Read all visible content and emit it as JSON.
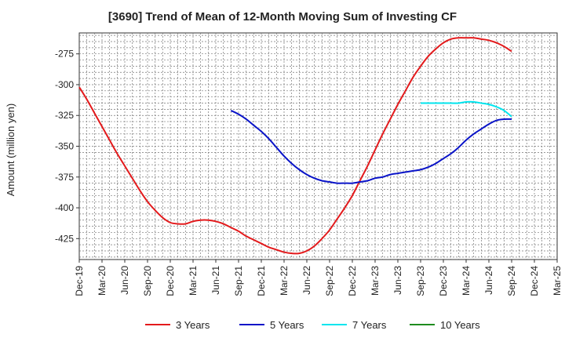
{
  "chart_data": {
    "type": "line",
    "title": "[3690]  Trend of Mean of 12-Month Moving Sum of Investing CF",
    "ylabel": "Amount (million yen)",
    "xlabel": "",
    "x_ticks": [
      "Dec-19",
      "Mar-20",
      "Jun-20",
      "Sep-20",
      "Dec-20",
      "Mar-21",
      "Jun-21",
      "Sep-21",
      "Dec-21",
      "Mar-22",
      "Jun-22",
      "Sep-22",
      "Dec-22",
      "Mar-23",
      "Jun-23",
      "Sep-23",
      "Dec-23",
      "Mar-24",
      "Jun-24",
      "Sep-24",
      "Dec-24",
      "Mar-25"
    ],
    "y_ticks": [
      -275,
      -300,
      -325,
      -350,
      -375,
      -400,
      -425
    ],
    "ylim": [
      -442,
      -258
    ],
    "grid": true,
    "legend_position": "bottom",
    "series": [
      {
        "name": "3 Years",
        "color": "#e31a1c",
        "x": [
          "Dec-19",
          "Jan-20",
          "Feb-20",
          "Mar-20",
          "Apr-20",
          "May-20",
          "Jun-20",
          "Jul-20",
          "Aug-20",
          "Sep-20",
          "Oct-20",
          "Nov-20",
          "Dec-20",
          "Jan-21",
          "Feb-21",
          "Mar-21",
          "Apr-21",
          "May-21",
          "Jun-21",
          "Jul-21",
          "Aug-21",
          "Sep-21",
          "Oct-21",
          "Nov-21",
          "Dec-21",
          "Jan-22",
          "Feb-22",
          "Mar-22",
          "Apr-22",
          "May-22",
          "Jun-22",
          "Jul-22",
          "Aug-22",
          "Sep-22",
          "Oct-22",
          "Nov-22",
          "Dec-22",
          "Jan-23",
          "Feb-23",
          "Mar-23",
          "Apr-23",
          "May-23",
          "Jun-23",
          "Jul-23",
          "Aug-23",
          "Sep-23",
          "Oct-23",
          "Nov-23",
          "Dec-23",
          "Jan-24",
          "Feb-24",
          "Mar-24",
          "Apr-24",
          "May-24",
          "Jun-24",
          "Jul-24",
          "Aug-24",
          "Sep-24"
        ],
        "values": [
          -302,
          -312,
          -323,
          -334,
          -345,
          -356,
          -366,
          -376,
          -386,
          -395,
          -402,
          -408,
          -412,
          -413,
          -413,
          -411,
          -410,
          -410,
          -411,
          -413,
          -416,
          -419,
          -423,
          -426,
          -429,
          -432,
          -434,
          -436,
          -437,
          -437,
          -435,
          -431,
          -425,
          -418,
          -409,
          -400,
          -390,
          -378,
          -366,
          -353,
          -340,
          -328,
          -316,
          -305,
          -294,
          -285,
          -277,
          -271,
          -266,
          -263,
          -262,
          -262,
          -262,
          -263,
          -264,
          -266,
          -269,
          -273
        ]
      },
      {
        "name": "5 Years",
        "color": "#0a14c8",
        "x": [
          "Aug-21",
          "Sep-21",
          "Oct-21",
          "Nov-21",
          "Dec-21",
          "Jan-22",
          "Feb-22",
          "Mar-22",
          "Apr-22",
          "May-22",
          "Jun-22",
          "Jul-22",
          "Aug-22",
          "Sep-22",
          "Oct-22",
          "Nov-22",
          "Dec-22",
          "Jan-23",
          "Feb-23",
          "Mar-23",
          "Apr-23",
          "May-23",
          "Jun-23",
          "Jul-23",
          "Aug-23",
          "Sep-23",
          "Oct-23",
          "Nov-23",
          "Dec-23",
          "Jan-24",
          "Feb-24",
          "Mar-24",
          "Apr-24",
          "May-24",
          "Jun-24",
          "Jul-24",
          "Aug-24",
          "Sep-24"
        ],
        "values": [
          -321,
          -324,
          -328,
          -333,
          -338,
          -344,
          -351,
          -358,
          -364,
          -369,
          -373,
          -376,
          -378,
          -379,
          -380,
          -380,
          -380,
          -379,
          -378,
          -376,
          -375,
          -373,
          -372,
          -371,
          -370,
          -369,
          -367,
          -364,
          -360,
          -356,
          -351,
          -345,
          -340,
          -336,
          -332,
          -329,
          -328,
          -328
        ]
      },
      {
        "name": "7 Years",
        "color": "#00e5ee",
        "x": [
          "Sep-23",
          "Oct-23",
          "Nov-23",
          "Dec-23",
          "Jan-24",
          "Feb-24",
          "Mar-24",
          "Apr-24",
          "May-24",
          "Jun-24",
          "Jul-24",
          "Aug-24",
          "Sep-24"
        ],
        "values": [
          -315,
          -315,
          -315,
          -315,
          -315,
          -315,
          -314,
          -314,
          -315,
          -316,
          -318,
          -321,
          -326
        ]
      },
      {
        "name": "10 Years",
        "color": "#1e8c1e",
        "x": [],
        "values": []
      }
    ]
  }
}
